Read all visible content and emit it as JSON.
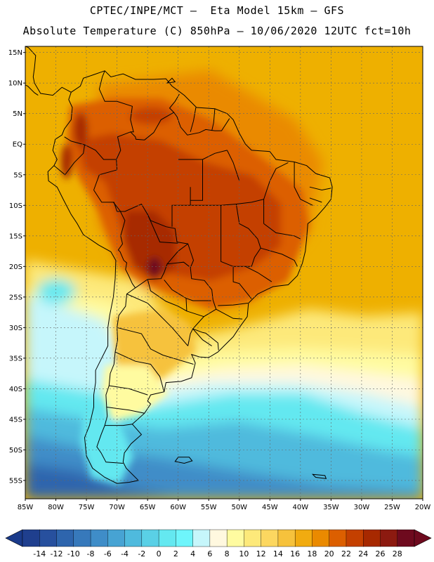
{
  "header": {
    "line1": "CPTEC/INPE/MCT –  Eta Model 15km – GFS",
    "line2": "Absolute Temperature (C) 850hPa – 10/06/2020 12UTC fct=10h"
  },
  "map": {
    "lon_range": [
      -85,
      -20
    ],
    "lat_range": [
      -58,
      16
    ],
    "lat_ticks": [
      {
        "lat": 15,
        "label": "15N"
      },
      {
        "lat": 10,
        "label": "10N"
      },
      {
        "lat": 5,
        "label": "5N"
      },
      {
        "lat": 0,
        "label": "EQ"
      },
      {
        "lat": -5,
        "label": "5S"
      },
      {
        "lat": -10,
        "label": "10S"
      },
      {
        "lat": -15,
        "label": "15S"
      },
      {
        "lat": -20,
        "label": "20S"
      },
      {
        "lat": -25,
        "label": "25S"
      },
      {
        "lat": -30,
        "label": "30S"
      },
      {
        "lat": -35,
        "label": "35S"
      },
      {
        "lat": -40,
        "label": "40S"
      },
      {
        "lat": -45,
        "label": "45S"
      },
      {
        "lat": -50,
        "label": "50S"
      },
      {
        "lat": -55,
        "label": "55S"
      }
    ],
    "lon_ticks": [
      {
        "lon": -85,
        "label": "85W"
      },
      {
        "lon": -80,
        "label": "80W"
      },
      {
        "lon": -75,
        "label": "75W"
      },
      {
        "lon": -70,
        "label": "70W"
      },
      {
        "lon": -65,
        "label": "65W"
      },
      {
        "lon": -60,
        "label": "60W"
      },
      {
        "lon": -55,
        "label": "55W"
      },
      {
        "lon": -50,
        "label": "50W"
      },
      {
        "lon": -45,
        "label": "45W"
      },
      {
        "lon": -40,
        "label": "40W"
      },
      {
        "lon": -35,
        "label": "35W"
      },
      {
        "lon": -30,
        "label": "30W"
      },
      {
        "lon": -25,
        "label": "25W"
      },
      {
        "lon": -20,
        "label": "20W"
      }
    ],
    "grid": true,
    "background_color": "#eeb000"
  },
  "colorbar": {
    "labels": [
      "-14",
      "-12",
      "-10",
      "-8",
      "-6",
      "-4",
      "-2",
      "0",
      "2",
      "4",
      "6",
      "8",
      "10",
      "12",
      "14",
      "16",
      "18",
      "20",
      "22",
      "24",
      "26",
      "28"
    ],
    "under_color": "#1a3a8a",
    "over_color": "#6e0a1e",
    "colors": [
      "#1f3f8e",
      "#27509e",
      "#2e65ad",
      "#3779bb",
      "#3f8dc8",
      "#47a3d3",
      "#4fbadd",
      "#5ad0e6",
      "#64e8f0",
      "#6ef5fb",
      "#c6f6fb",
      "#fff8df",
      "#fffba0",
      "#fde97a",
      "#fcd760",
      "#f6c23c",
      "#f1ab10",
      "#ea8a00",
      "#dc5f00",
      "#c44000",
      "#a72900",
      "#8c1a10",
      "#6e0a1e"
    ]
  }
}
